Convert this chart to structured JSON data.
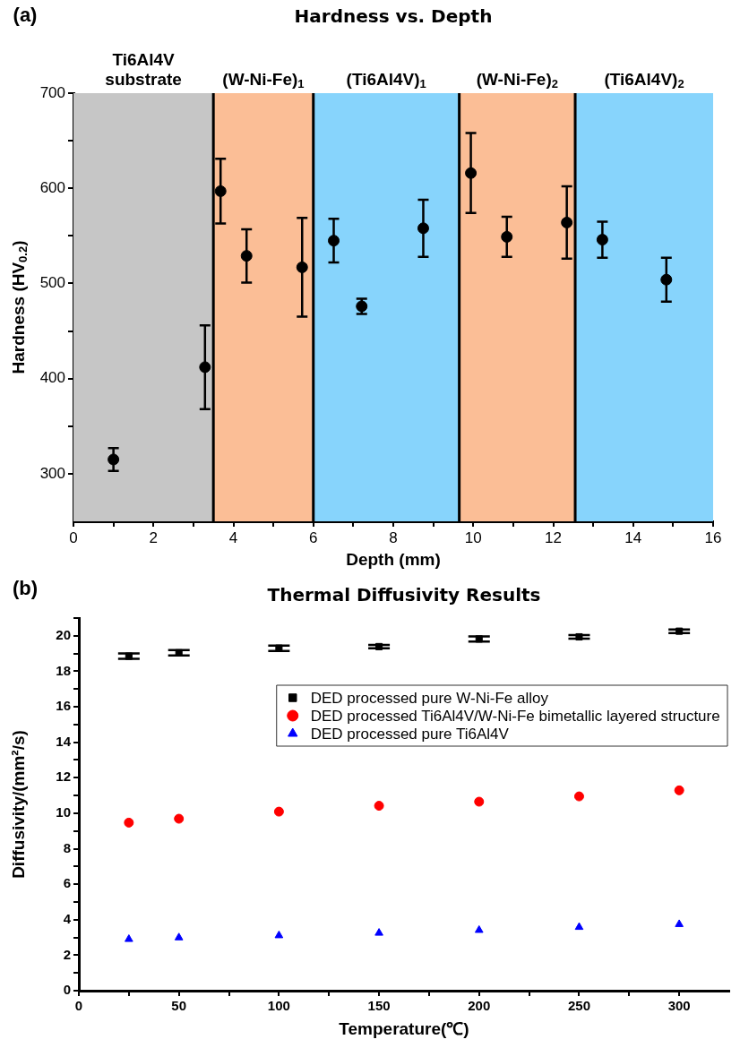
{
  "chart_data": [
    {
      "type": "scatter",
      "title": "Hardness vs. Depth",
      "xlabel": "Depth (mm)",
      "ylabel": "Hardness (HV$_{0.2}$)",
      "annotations": [
        "(a)"
      ],
      "x": [
        1.0,
        3.29,
        3.68,
        4.33,
        5.72,
        6.51,
        7.21,
        8.75,
        9.94,
        10.84,
        12.34,
        13.23,
        14.83
      ],
      "values": [
        315,
        412,
        597,
        529,
        517,
        545,
        476,
        558,
        616,
        549,
        564,
        546,
        504
      ],
      "errors": [
        12,
        44,
        34,
        28,
        52,
        23,
        8,
        30,
        42,
        21,
        38,
        19,
        23
      ],
      "color": "#000000",
      "marker": "circle",
      "xlim": [
        0,
        16
      ],
      "xticks": [
        0,
        {
          "value": 1,
          "label": null
        },
        2,
        {
          "value": 3,
          "label": null
        },
        4,
        {
          "value": 5,
          "label": null
        },
        6,
        {
          "value": 7,
          "label": null
        },
        8,
        {
          "value": 9,
          "label": null
        },
        10,
        {
          "value": 11,
          "label": null
        },
        12,
        {
          "value": 13,
          "label": null
        },
        14,
        {
          "value": 15,
          "label": null
        },
        16
      ],
      "ylim": [
        250,
        700
      ],
      "yticks": [
        300,
        {
          "value": 350,
          "label": null
        },
        400,
        {
          "value": 450,
          "label": null
        },
        500,
        {
          "value": 550,
          "label": null
        },
        600,
        {
          "value": 650,
          "label": null
        },
        700
      ],
      "bands": [
        {
          "axis": "x",
          "from": 0,
          "to": 3.5,
          "label": "Ti6Al4V substrate",
          "color": "#c6c6c6"
        },
        {
          "axis": "x",
          "from": 3.5,
          "to": 6,
          "label": "(W-Ni-Fe)$_{1}$",
          "color": "#fbbe96"
        },
        {
          "axis": "x",
          "from": 6,
          "to": 9.65,
          "label": "(Ti6Al4V)$_{1}$",
          "color": "#87d4fc"
        },
        {
          "axis": "x",
          "from": 9.65,
          "to": 12.55,
          "label": "(W-Ni-Fe)$_{2}$",
          "color": "#fbbe96"
        },
        {
          "axis": "x",
          "from": 12.55,
          "to": 16,
          "label": "(Ti6Al4V)$_{2}$",
          "color": "#87d4fc"
        }
      ],
      "ref_lines": [
        {
          "axis": "x",
          "value": 3.5,
          "color": "#000000"
        },
        {
          "axis": "x",
          "value": 6,
          "color": "#000000"
        },
        {
          "axis": "x",
          "value": 9.65,
          "color": "#000000"
        },
        {
          "axis": "x",
          "value": 12.55,
          "color": "#000000"
        }
      ],
      "grid": false
    },
    {
      "type": "scatter",
      "title": "Thermal Diffusivity Results",
      "xlabel": "Temperature(℃)",
      "ylabel": "Diffusivity/(mm²/s)",
      "annotations": [
        "(b)"
      ],
      "x": [
        25,
        50,
        100,
        150,
        200,
        250,
        300
      ],
      "series": [
        {
          "name": "DED processed pure W-Ni-Fe alloy",
          "color": "#000000",
          "marker": "square",
          "values": [
            18.85,
            19.04,
            19.3,
            19.39,
            19.82,
            19.94,
            20.26
          ],
          "errors": [
            0.15,
            0.15,
            0.15,
            0.1,
            0.15,
            0.1,
            0.1
          ]
        },
        {
          "name": "DED processed Ti6Al4V/W-Ni-Fe bimetallic layered structure",
          "color": "#ff0000",
          "marker": "circle",
          "values": [
            9.47,
            9.69,
            10.09,
            10.42,
            10.65,
            10.95,
            11.29
          ]
        },
        {
          "name": "DED processed pure Ti6Al4V",
          "color": "#0000ff",
          "marker": "triangle",
          "values": [
            2.9,
            2.99,
            3.11,
            3.25,
            3.41,
            3.58,
            3.74
          ]
        }
      ],
      "xlim": [
        0,
        325
      ],
      "xticks": [
        0,
        {
          "value": 25,
          "label": null
        },
        50,
        {
          "value": 75,
          "label": null
        },
        100,
        {
          "value": 125,
          "label": null
        },
        150,
        {
          "value": 175,
          "label": null
        },
        200,
        {
          "value": 225,
          "label": null
        },
        250,
        {
          "value": 275,
          "label": null
        },
        300
      ],
      "ylim": [
        0,
        21
      ],
      "yticks": [
        0,
        {
          "value": 1,
          "label": null
        },
        2,
        {
          "value": 3,
          "label": null
        },
        4,
        {
          "value": 5,
          "label": null
        },
        6,
        {
          "value": 7,
          "label": null
        },
        8,
        {
          "value": 9,
          "label": null
        },
        10,
        {
          "value": 11,
          "label": null
        },
        12,
        {
          "value": 13,
          "label": null
        },
        14,
        {
          "value": 15,
          "label": null
        },
        16,
        {
          "value": 17,
          "label": null
        },
        18,
        {
          "value": 19,
          "label": null
        },
        20,
        {
          "value": 21,
          "label": null
        }
      ],
      "legend": "top right",
      "grid": false
    }
  ]
}
